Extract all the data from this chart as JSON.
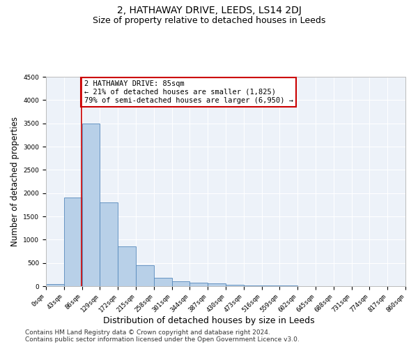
{
  "title": "2, HATHAWAY DRIVE, LEEDS, LS14 2DJ",
  "subtitle": "Size of property relative to detached houses in Leeds",
  "xlabel": "Distribution of detached houses by size in Leeds",
  "ylabel": "Number of detached properties",
  "bin_edges": [
    0,
    43,
    86,
    129,
    172,
    215,
    258,
    301,
    344,
    387,
    430,
    473,
    516,
    559,
    602,
    645,
    688,
    731,
    774,
    817,
    860
  ],
  "bar_heights": [
    50,
    1900,
    3500,
    1800,
    850,
    450,
    175,
    100,
    75,
    60,
    30,
    15,
    10,
    8,
    5,
    3,
    2,
    1,
    1,
    0
  ],
  "bar_color": "#b8d0e8",
  "bar_edge_color": "#5588bb",
  "property_line_x": 85,
  "property_line_color": "#cc0000",
  "annotation_text": "2 HATHAWAY DRIVE: 85sqm\n← 21% of detached houses are smaller (1,825)\n79% of semi-detached houses are larger (6,950) →",
  "annotation_box_color": "#cc0000",
  "ylim": [
    0,
    4500
  ],
  "yticks": [
    0,
    500,
    1000,
    1500,
    2000,
    2500,
    3000,
    3500,
    4000,
    4500
  ],
  "background_color": "#edf2f9",
  "grid_color": "#ffffff",
  "footer_line1": "Contains HM Land Registry data © Crown copyright and database right 2024.",
  "footer_line2": "Contains public sector information licensed under the Open Government Licence v3.0.",
  "title_fontsize": 10,
  "subtitle_fontsize": 9,
  "axis_label_fontsize": 8.5,
  "tick_fontsize": 6.5,
  "annotation_fontsize": 7.5,
  "footer_fontsize": 6.5
}
